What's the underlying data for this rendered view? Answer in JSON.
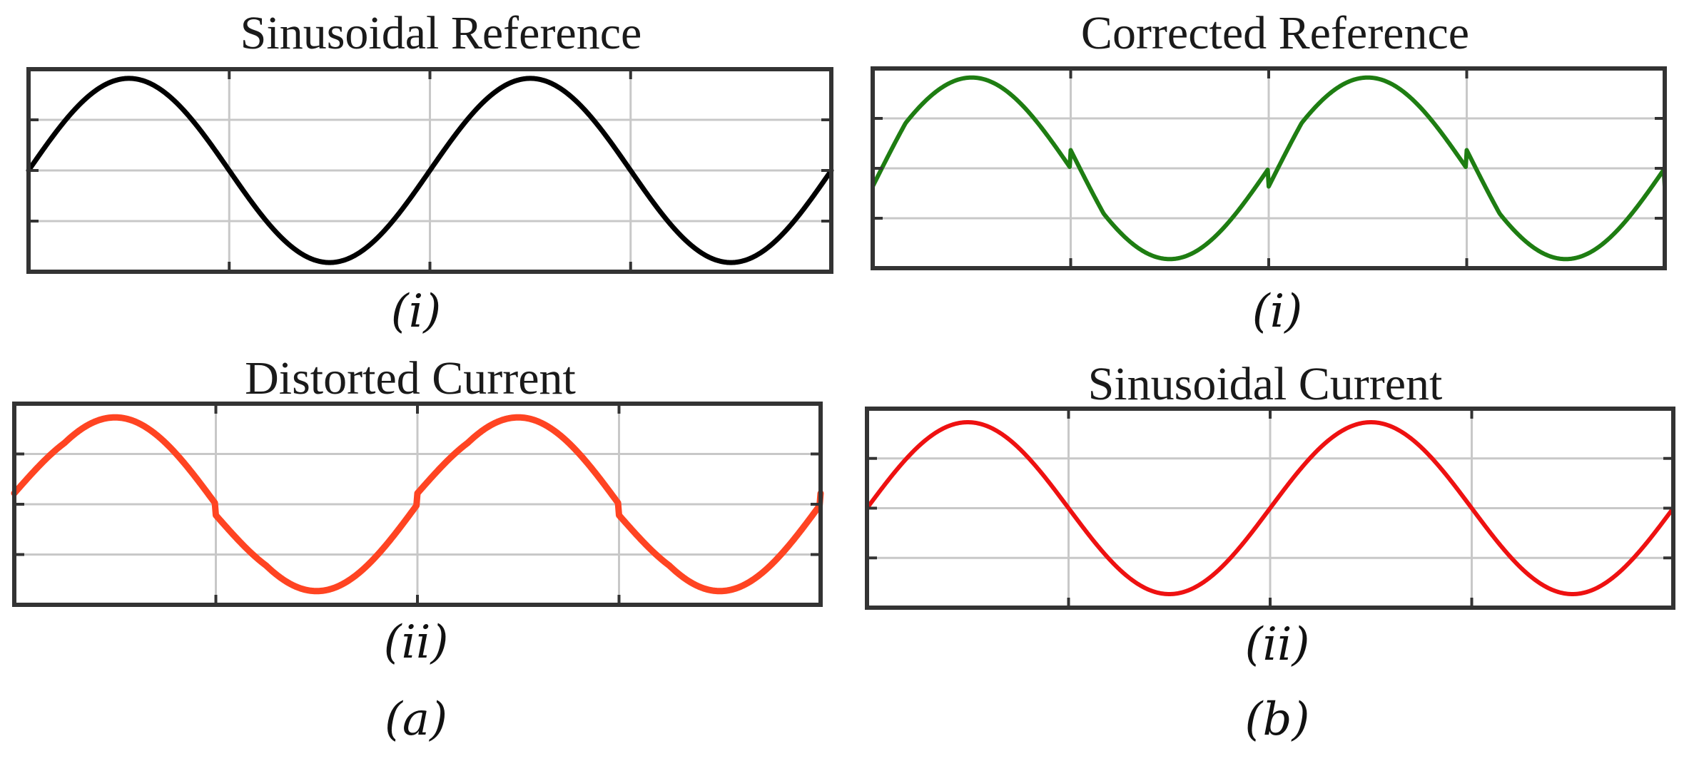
{
  "chart_data": [
    {
      "id": "a_i",
      "type": "line",
      "title": "Sinusoidal Reference",
      "caption": "(i)",
      "grid": true,
      "xlim": [
        0,
        2
      ],
      "ylim": [
        -1.1,
        1.1
      ],
      "series": [
        {
          "color": "#000000",
          "waveform": "sine",
          "amplitude": 1.0,
          "cycles": 2,
          "x_start": 0,
          "x_end": 2
        }
      ]
    },
    {
      "id": "b_i",
      "type": "line",
      "title": "Corrected Reference",
      "caption": "(i)",
      "grid": true,
      "xlim": [
        0,
        2
      ],
      "ylim": [
        -1.1,
        1.1
      ],
      "series": [
        {
          "color": "#1e7d12",
          "waveform": "sine_with_notches",
          "amplitude": 1.0,
          "cycles": 2,
          "x_start": 0,
          "x_end": 2,
          "notch_depth": 0.2,
          "notch_x": [
            0,
            0.5,
            1.0,
            1.5,
            2.0
          ]
        }
      ]
    },
    {
      "id": "a_ii",
      "type": "line",
      "title": "Distorted Current",
      "caption": "(ii)",
      "grid": true,
      "xlim": [
        0,
        2
      ],
      "ylim": [
        -1.1,
        1.1
      ],
      "series": [
        {
          "color": "#ff4422",
          "waveform": "sine_distorted",
          "amplitude": 0.95,
          "cycles": 2,
          "x_start": 0,
          "x_end": 2,
          "step_size": 0.12,
          "step_x": [
            0,
            0.5,
            1.0,
            1.5
          ]
        }
      ]
    },
    {
      "id": "b_ii",
      "type": "line",
      "title": "Sinusoidal Current",
      "caption": "(ii)",
      "grid": true,
      "xlim": [
        0,
        2
      ],
      "ylim": [
        -1.1,
        1.1
      ],
      "series": [
        {
          "color": "#ee1111",
          "waveform": "sine",
          "amplitude": 0.95,
          "cycles": 2,
          "x_start": 0,
          "x_end": 2
        }
      ]
    }
  ],
  "group_labels": {
    "a": "(a)",
    "b": "(b)"
  }
}
